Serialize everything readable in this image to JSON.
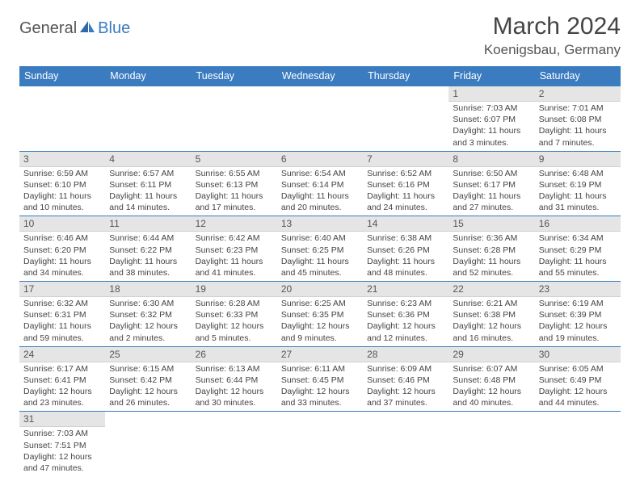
{
  "brand": {
    "text1": "General",
    "text2": "Blue"
  },
  "title": "March 2024",
  "location": "Koenigsbau, Germany",
  "colors": {
    "header_bg": "#3b7bbf",
    "daynum_bg": "#e5e5e5",
    "border": "#3b7bbf",
    "text": "#444444"
  },
  "weekdays": [
    "Sunday",
    "Monday",
    "Tuesday",
    "Wednesday",
    "Thursday",
    "Friday",
    "Saturday"
  ],
  "weeks": [
    [
      {
        "n": "",
        "sr": "",
        "ss": "",
        "dl": ""
      },
      {
        "n": "",
        "sr": "",
        "ss": "",
        "dl": ""
      },
      {
        "n": "",
        "sr": "",
        "ss": "",
        "dl": ""
      },
      {
        "n": "",
        "sr": "",
        "ss": "",
        "dl": ""
      },
      {
        "n": "",
        "sr": "",
        "ss": "",
        "dl": ""
      },
      {
        "n": "1",
        "sr": "Sunrise: 7:03 AM",
        "ss": "Sunset: 6:07 PM",
        "dl": "Daylight: 11 hours and 3 minutes."
      },
      {
        "n": "2",
        "sr": "Sunrise: 7:01 AM",
        "ss": "Sunset: 6:08 PM",
        "dl": "Daylight: 11 hours and 7 minutes."
      }
    ],
    [
      {
        "n": "3",
        "sr": "Sunrise: 6:59 AM",
        "ss": "Sunset: 6:10 PM",
        "dl": "Daylight: 11 hours and 10 minutes."
      },
      {
        "n": "4",
        "sr": "Sunrise: 6:57 AM",
        "ss": "Sunset: 6:11 PM",
        "dl": "Daylight: 11 hours and 14 minutes."
      },
      {
        "n": "5",
        "sr": "Sunrise: 6:55 AM",
        "ss": "Sunset: 6:13 PM",
        "dl": "Daylight: 11 hours and 17 minutes."
      },
      {
        "n": "6",
        "sr": "Sunrise: 6:54 AM",
        "ss": "Sunset: 6:14 PM",
        "dl": "Daylight: 11 hours and 20 minutes."
      },
      {
        "n": "7",
        "sr": "Sunrise: 6:52 AM",
        "ss": "Sunset: 6:16 PM",
        "dl": "Daylight: 11 hours and 24 minutes."
      },
      {
        "n": "8",
        "sr": "Sunrise: 6:50 AM",
        "ss": "Sunset: 6:17 PM",
        "dl": "Daylight: 11 hours and 27 minutes."
      },
      {
        "n": "9",
        "sr": "Sunrise: 6:48 AM",
        "ss": "Sunset: 6:19 PM",
        "dl": "Daylight: 11 hours and 31 minutes."
      }
    ],
    [
      {
        "n": "10",
        "sr": "Sunrise: 6:46 AM",
        "ss": "Sunset: 6:20 PM",
        "dl": "Daylight: 11 hours and 34 minutes."
      },
      {
        "n": "11",
        "sr": "Sunrise: 6:44 AM",
        "ss": "Sunset: 6:22 PM",
        "dl": "Daylight: 11 hours and 38 minutes."
      },
      {
        "n": "12",
        "sr": "Sunrise: 6:42 AM",
        "ss": "Sunset: 6:23 PM",
        "dl": "Daylight: 11 hours and 41 minutes."
      },
      {
        "n": "13",
        "sr": "Sunrise: 6:40 AM",
        "ss": "Sunset: 6:25 PM",
        "dl": "Daylight: 11 hours and 45 minutes."
      },
      {
        "n": "14",
        "sr": "Sunrise: 6:38 AM",
        "ss": "Sunset: 6:26 PM",
        "dl": "Daylight: 11 hours and 48 minutes."
      },
      {
        "n": "15",
        "sr": "Sunrise: 6:36 AM",
        "ss": "Sunset: 6:28 PM",
        "dl": "Daylight: 11 hours and 52 minutes."
      },
      {
        "n": "16",
        "sr": "Sunrise: 6:34 AM",
        "ss": "Sunset: 6:29 PM",
        "dl": "Daylight: 11 hours and 55 minutes."
      }
    ],
    [
      {
        "n": "17",
        "sr": "Sunrise: 6:32 AM",
        "ss": "Sunset: 6:31 PM",
        "dl": "Daylight: 11 hours and 59 minutes."
      },
      {
        "n": "18",
        "sr": "Sunrise: 6:30 AM",
        "ss": "Sunset: 6:32 PM",
        "dl": "Daylight: 12 hours and 2 minutes."
      },
      {
        "n": "19",
        "sr": "Sunrise: 6:28 AM",
        "ss": "Sunset: 6:33 PM",
        "dl": "Daylight: 12 hours and 5 minutes."
      },
      {
        "n": "20",
        "sr": "Sunrise: 6:25 AM",
        "ss": "Sunset: 6:35 PM",
        "dl": "Daylight: 12 hours and 9 minutes."
      },
      {
        "n": "21",
        "sr": "Sunrise: 6:23 AM",
        "ss": "Sunset: 6:36 PM",
        "dl": "Daylight: 12 hours and 12 minutes."
      },
      {
        "n": "22",
        "sr": "Sunrise: 6:21 AM",
        "ss": "Sunset: 6:38 PM",
        "dl": "Daylight: 12 hours and 16 minutes."
      },
      {
        "n": "23",
        "sr": "Sunrise: 6:19 AM",
        "ss": "Sunset: 6:39 PM",
        "dl": "Daylight: 12 hours and 19 minutes."
      }
    ],
    [
      {
        "n": "24",
        "sr": "Sunrise: 6:17 AM",
        "ss": "Sunset: 6:41 PM",
        "dl": "Daylight: 12 hours and 23 minutes."
      },
      {
        "n": "25",
        "sr": "Sunrise: 6:15 AM",
        "ss": "Sunset: 6:42 PM",
        "dl": "Daylight: 12 hours and 26 minutes."
      },
      {
        "n": "26",
        "sr": "Sunrise: 6:13 AM",
        "ss": "Sunset: 6:44 PM",
        "dl": "Daylight: 12 hours and 30 minutes."
      },
      {
        "n": "27",
        "sr": "Sunrise: 6:11 AM",
        "ss": "Sunset: 6:45 PM",
        "dl": "Daylight: 12 hours and 33 minutes."
      },
      {
        "n": "28",
        "sr": "Sunrise: 6:09 AM",
        "ss": "Sunset: 6:46 PM",
        "dl": "Daylight: 12 hours and 37 minutes."
      },
      {
        "n": "29",
        "sr": "Sunrise: 6:07 AM",
        "ss": "Sunset: 6:48 PM",
        "dl": "Daylight: 12 hours and 40 minutes."
      },
      {
        "n": "30",
        "sr": "Sunrise: 6:05 AM",
        "ss": "Sunset: 6:49 PM",
        "dl": "Daylight: 12 hours and 44 minutes."
      }
    ],
    [
      {
        "n": "31",
        "sr": "Sunrise: 7:03 AM",
        "ss": "Sunset: 7:51 PM",
        "dl": "Daylight: 12 hours and 47 minutes."
      },
      {
        "n": "",
        "sr": "",
        "ss": "",
        "dl": ""
      },
      {
        "n": "",
        "sr": "",
        "ss": "",
        "dl": ""
      },
      {
        "n": "",
        "sr": "",
        "ss": "",
        "dl": ""
      },
      {
        "n": "",
        "sr": "",
        "ss": "",
        "dl": ""
      },
      {
        "n": "",
        "sr": "",
        "ss": "",
        "dl": ""
      },
      {
        "n": "",
        "sr": "",
        "ss": "",
        "dl": ""
      }
    ]
  ]
}
